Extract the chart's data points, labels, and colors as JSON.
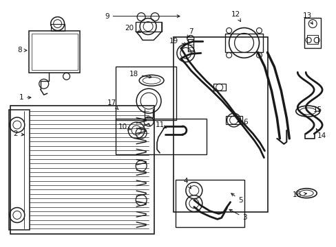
{
  "bg_color": "#ffffff",
  "fig_width": 4.89,
  "fig_height": 3.6,
  "dpi": 100,
  "line_color": "#1a1a1a",
  "text_color": "#111111",
  "font_size": 7.5,
  "arrow_color": "#111111"
}
